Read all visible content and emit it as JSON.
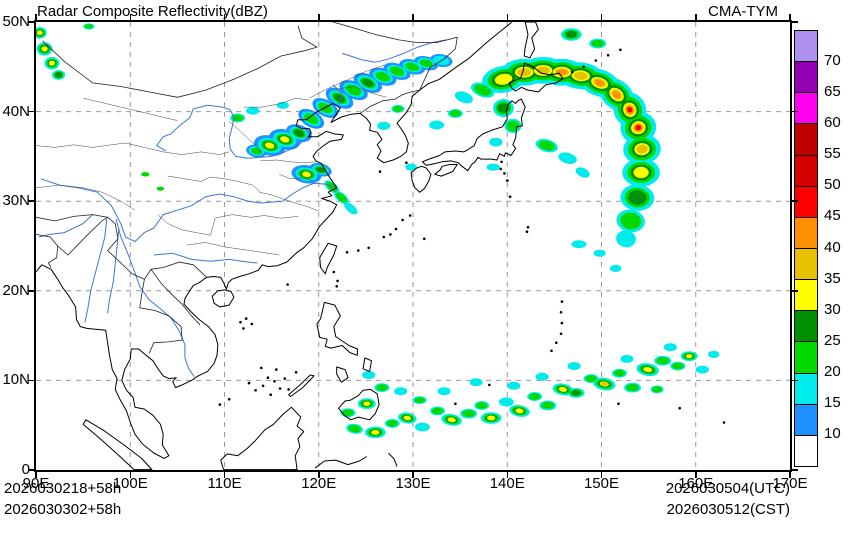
{
  "header": {
    "title": "Radar Composite Reflectivity(dBZ)",
    "model": "CMA-TYM"
  },
  "footer": {
    "left_line1": "2026030218+58h",
    "left_line2": "2026030302+58h",
    "right_line1": "2026030504(UTC)",
    "right_line2": "2026030512(CST)"
  },
  "chart_data": {
    "type": "heatmap",
    "title": "Radar Composite Reflectivity(dBZ)",
    "model": "CMA-TYM",
    "unit": "dBZ",
    "lon_range": [
      90,
      170
    ],
    "lat_range": [
      0,
      50
    ],
    "x_tick_labels": [
      "90E",
      "100E",
      "110E",
      "120E",
      "130E",
      "140E",
      "150E",
      "160E",
      "170E"
    ],
    "y_tick_labels": [
      "0",
      "10N",
      "20N",
      "30N",
      "40N",
      "50N"
    ],
    "grid": "dashed",
    "legend_position": "right",
    "levels": [
      10,
      15,
      20,
      25,
      30,
      35,
      40,
      45,
      50,
      55,
      60,
      65,
      70
    ],
    "level_colors": [
      "#FFFFFF",
      "#1E90FF",
      "#00ECEC",
      "#00D800",
      "#019001",
      "#FFFF00",
      "#E7C000",
      "#FF9000",
      "#FF0000",
      "#D60000",
      "#C00000",
      "#FF00F0",
      "#9600B4",
      "#AD90F0"
    ],
    "echo_clusters": [
      [
        139.6,
        43.6,
        4.6,
        3.0,
        15,
        30,
        -10
      ],
      [
        141.8,
        44.4,
        4.8,
        3.0,
        15,
        35,
        0
      ],
      [
        143.8,
        44.6,
        4.8,
        3.0,
        15,
        35,
        0
      ],
      [
        145.8,
        44.4,
        4.8,
        3.0,
        15,
        40,
        0
      ],
      [
        147.8,
        44.0,
        4.8,
        3.0,
        15,
        35,
        5
      ],
      [
        149.8,
        43.2,
        4.6,
        3.0,
        15,
        40,
        20
      ],
      [
        151.6,
        41.9,
        4.2,
        3.2,
        15,
        40,
        40
      ],
      [
        153.0,
        40.2,
        3.8,
        3.6,
        15,
        45,
        65
      ],
      [
        153.9,
        38.2,
        3.4,
        4.0,
        15,
        45,
        80
      ],
      [
        154.3,
        35.8,
        3.2,
        4.2,
        15,
        35,
        85
      ],
      [
        154.2,
        33.2,
        3.0,
        4.2,
        15,
        30,
        90
      ],
      [
        153.8,
        30.4,
        2.8,
        3.8,
        15,
        25,
        95
      ],
      [
        153.1,
        27.8,
        2.4,
        3.2,
        15,
        20,
        100
      ],
      [
        152.6,
        25.8,
        1.8,
        2.2,
        15,
        15,
        100
      ],
      [
        137.4,
        42.4,
        2.6,
        1.5,
        15,
        20,
        20
      ],
      [
        135.4,
        41.6,
        2.0,
        1.2,
        15,
        15,
        20
      ],
      [
        139.6,
        40.4,
        2.2,
        2.0,
        15,
        25,
        0
      ],
      [
        140.6,
        38.4,
        1.8,
        1.6,
        15,
        20,
        0
      ],
      [
        138.8,
        36.6,
        1.4,
        1.0,
        15,
        15,
        0
      ],
      [
        138.5,
        33.8,
        1.4,
        0.8,
        15,
        15,
        0
      ],
      [
        134.5,
        39.8,
        1.6,
        1.0,
        15,
        20,
        0
      ],
      [
        132.5,
        38.5,
        1.6,
        1.0,
        15,
        15,
        0
      ],
      [
        129.8,
        33.8,
        1.2,
        0.8,
        15,
        15,
        0
      ],
      [
        144.2,
        36.2,
        2.4,
        1.4,
        15,
        20,
        15
      ],
      [
        146.4,
        34.8,
        2.0,
        1.2,
        15,
        15,
        15
      ],
      [
        148.0,
        33.2,
        1.6,
        1.0,
        15,
        15,
        25
      ],
      [
        147.6,
        25.2,
        1.6,
        0.9,
        15,
        15,
        0
      ],
      [
        149.8,
        24.2,
        1.3,
        0.8,
        15,
        15,
        0
      ],
      [
        151.5,
        22.5,
        1.2,
        0.8,
        15,
        15,
        0
      ],
      [
        146.8,
        48.6,
        2.2,
        1.4,
        15,
        25,
        0
      ],
      [
        149.6,
        47.6,
        1.8,
        1.1,
        15,
        20,
        0
      ],
      [
        119.2,
        39.2,
        3.0,
        1.8,
        10,
        20,
        30
      ],
      [
        120.7,
        40.4,
        3.0,
        1.8,
        10,
        20,
        30
      ],
      [
        122.2,
        41.5,
        3.2,
        1.9,
        10,
        25,
        30
      ],
      [
        123.7,
        42.4,
        3.2,
        1.9,
        10,
        20,
        25
      ],
      [
        125.2,
        43.2,
        3.2,
        1.9,
        10,
        25,
        25
      ],
      [
        126.8,
        43.9,
        3.0,
        1.8,
        10,
        20,
        20
      ],
      [
        128.3,
        44.5,
        3.0,
        1.7,
        10,
        20,
        20
      ],
      [
        129.9,
        45.0,
        2.8,
        1.6,
        10,
        20,
        15
      ],
      [
        131.4,
        45.4,
        2.6,
        1.5,
        10,
        20,
        15
      ],
      [
        133.0,
        45.7,
        2.4,
        1.4,
        10,
        15,
        10
      ],
      [
        126.9,
        38.4,
        1.4,
        0.9,
        15,
        15,
        0
      ],
      [
        128.4,
        40.3,
        1.4,
        0.9,
        15,
        20,
        0
      ],
      [
        114.8,
        36.2,
        3.4,
        2.2,
        10,
        30,
        15
      ],
      [
        116.4,
        36.9,
        3.4,
        2.2,
        10,
        30,
        15
      ],
      [
        117.9,
        37.6,
        2.8,
        1.8,
        10,
        25,
        20
      ],
      [
        113.4,
        35.6,
        2.2,
        1.4,
        10,
        20,
        10
      ],
      [
        111.4,
        39.3,
        1.6,
        1.0,
        15,
        20,
        0
      ],
      [
        113.0,
        40.1,
        1.4,
        0.9,
        15,
        15,
        0
      ],
      [
        116.2,
        40.7,
        1.3,
        0.8,
        15,
        15,
        0
      ],
      [
        118.7,
        33.0,
        3.2,
        2.0,
        10,
        30,
        10
      ],
      [
        120.2,
        33.5,
        2.4,
        1.4,
        10,
        25,
        15
      ],
      [
        121.4,
        31.6,
        1.9,
        1.0,
        15,
        20,
        40
      ],
      [
        122.4,
        30.4,
        1.9,
        1.0,
        15,
        20,
        40
      ],
      [
        123.4,
        29.2,
        1.7,
        0.9,
        15,
        15,
        40
      ],
      [
        101.6,
        33.0,
        0.9,
        0.5,
        20,
        20,
        0
      ],
      [
        103.2,
        31.4,
        0.8,
        0.45,
        20,
        20,
        0
      ],
      [
        90.4,
        48.8,
        1.5,
        1.3,
        15,
        30,
        0
      ],
      [
        90.9,
        47.0,
        1.7,
        1.5,
        15,
        30,
        0
      ],
      [
        91.7,
        45.4,
        1.6,
        1.4,
        15,
        30,
        0
      ],
      [
        92.4,
        44.1,
        1.4,
        1.1,
        15,
        25,
        0
      ],
      [
        95.6,
        49.5,
        1.2,
        0.7,
        15,
        20,
        0
      ],
      [
        123.8,
        4.6,
        1.8,
        1.1,
        15,
        20,
        10
      ],
      [
        126.0,
        4.2,
        2.2,
        1.3,
        15,
        30,
        0
      ],
      [
        127.8,
        5.2,
        1.6,
        1.0,
        15,
        20,
        0
      ],
      [
        129.4,
        5.8,
        2.0,
        1.2,
        15,
        30,
        10
      ],
      [
        131.0,
        4.8,
        1.6,
        1.0,
        15,
        15,
        0
      ],
      [
        132.6,
        6.6,
        1.6,
        1.0,
        15,
        20,
        0
      ],
      [
        134.1,
        5.6,
        2.2,
        1.3,
        15,
        30,
        10
      ],
      [
        135.9,
        6.3,
        1.8,
        1.1,
        15,
        20,
        0
      ],
      [
        137.3,
        7.2,
        1.6,
        1.0,
        15,
        20,
        0
      ],
      [
        138.3,
        5.8,
        2.2,
        1.3,
        15,
        30,
        0
      ],
      [
        139.9,
        7.6,
        1.6,
        1.0,
        15,
        15,
        0
      ],
      [
        141.3,
        6.6,
        2.2,
        1.3,
        15,
        30,
        10
      ],
      [
        142.9,
        8.2,
        1.6,
        1.0,
        15,
        20,
        0
      ],
      [
        144.3,
        7.2,
        1.8,
        1.1,
        15,
        20,
        0
      ],
      [
        145.9,
        9.0,
        2.2,
        1.3,
        15,
        30,
        10
      ],
      [
        147.3,
        8.6,
        1.8,
        1.1,
        15,
        25,
        0
      ],
      [
        148.9,
        10.2,
        1.6,
        1.0,
        15,
        20,
        0
      ],
      [
        150.3,
        9.6,
        2.4,
        1.4,
        15,
        35,
        10
      ],
      [
        151.9,
        10.8,
        1.6,
        1.0,
        15,
        20,
        0
      ],
      [
        153.3,
        9.2,
        1.8,
        1.1,
        15,
        20,
        0
      ],
      [
        154.9,
        11.2,
        2.4,
        1.4,
        15,
        30,
        10
      ],
      [
        156.5,
        12.2,
        1.8,
        1.1,
        15,
        20,
        0
      ],
      [
        158.1,
        11.6,
        1.6,
        1.0,
        15,
        20,
        0
      ],
      [
        159.3,
        12.7,
        1.8,
        1.1,
        15,
        30,
        0
      ],
      [
        160.7,
        11.2,
        1.4,
        0.9,
        15,
        15,
        0
      ],
      [
        123.1,
        6.4,
        1.6,
        1.0,
        15,
        20,
        0
      ],
      [
        125.1,
        7.4,
        1.9,
        1.2,
        15,
        30,
        0
      ],
      [
        126.7,
        9.2,
        1.6,
        1.0,
        15,
        20,
        0
      ],
      [
        125.3,
        10.6,
        1.4,
        0.9,
        15,
        15,
        0
      ],
      [
        128.7,
        8.8,
        1.4,
        0.9,
        15,
        15,
        0
      ],
      [
        130.7,
        7.8,
        1.5,
        0.9,
        15,
        20,
        0
      ],
      [
        133.3,
        8.8,
        1.4,
        0.9,
        15,
        15,
        0
      ],
      [
        136.7,
        9.8,
        1.4,
        0.9,
        15,
        15,
        0
      ],
      [
        140.7,
        9.4,
        1.4,
        0.9,
        15,
        15,
        0
      ],
      [
        143.7,
        10.4,
        1.4,
        0.9,
        15,
        15,
        0
      ],
      [
        147.1,
        11.6,
        1.4,
        0.9,
        15,
        15,
        0
      ],
      [
        152.7,
        12.4,
        1.4,
        0.9,
        15,
        15,
        0
      ],
      [
        157.3,
        13.7,
        1.4,
        0.9,
        15,
        15,
        0
      ],
      [
        155.9,
        9.0,
        1.4,
        0.9,
        15,
        20,
        0
      ],
      [
        161.9,
        12.9,
        1.2,
        0.8,
        15,
        15,
        0
      ]
    ]
  }
}
